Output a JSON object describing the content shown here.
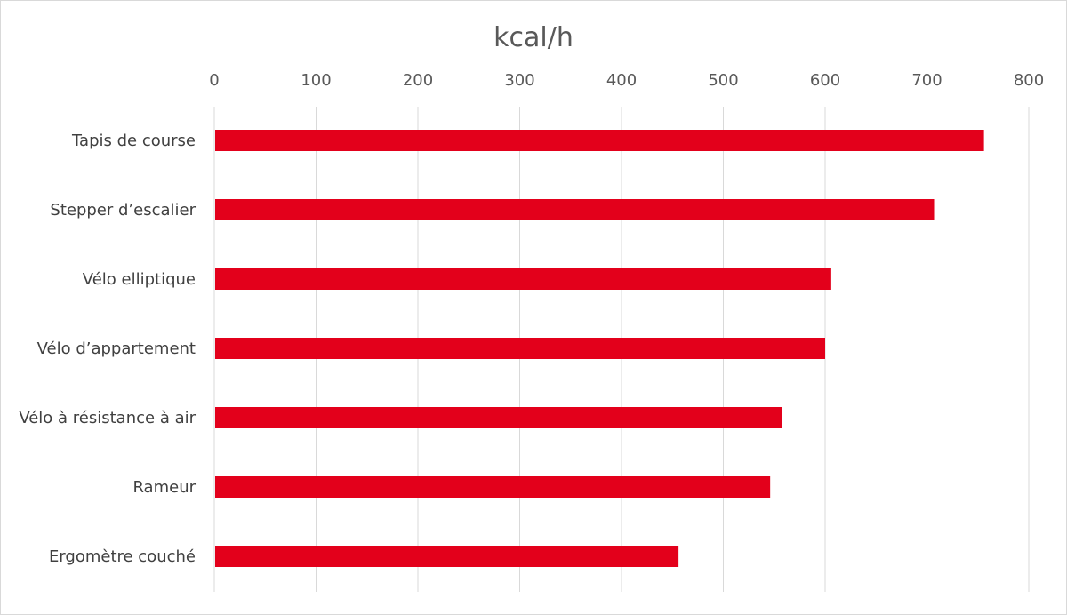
{
  "chart_data": {
    "type": "bar",
    "orientation": "horizontal",
    "title": "kcal/h",
    "categories": [
      "Tapis de course",
      "Stepper d’escalier",
      "Vélo elliptique",
      "Vélo d’appartement",
      "Vélo à résistance à air",
      "Rameur",
      "Ergomètre couché"
    ],
    "values": [
      756,
      707,
      606,
      600,
      558,
      546,
      456
    ],
    "xlim": [
      0,
      800
    ],
    "xticks": [
      "0",
      "100",
      "200",
      "300",
      "400",
      "500",
      "600",
      "700",
      "800"
    ],
    "x_axis_position": "top",
    "grid": true,
    "legend": "none",
    "bar_color": "#e3001b"
  }
}
